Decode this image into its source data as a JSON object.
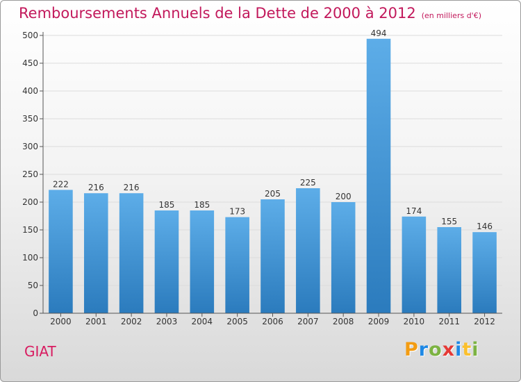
{
  "header": {
    "title": "Remboursements Annuels de la Dette de 2000 à 2012",
    "subtitle": "(en milliers d'€)"
  },
  "footer": {
    "location": "GIAT",
    "brand_letters": [
      "P",
      "r",
      "o",
      "x",
      "i",
      "t",
      "i"
    ],
    "brand_colors": [
      "#f39c12",
      "#1e88e5",
      "#7cb342",
      "#e53935",
      "#1e88e5",
      "#fbc02d",
      "#7cb342"
    ]
  },
  "chart_data": {
    "type": "bar",
    "title": "Remboursements Annuels de la Dette de 2000 à 2012",
    "subtitle": "(en milliers d'€)",
    "categories": [
      "2000",
      "2001",
      "2002",
      "2003",
      "2004",
      "2005",
      "2006",
      "2007",
      "2008",
      "2009",
      "2010",
      "2011",
      "2012"
    ],
    "values": [
      222,
      216,
      216,
      185,
      185,
      173,
      205,
      225,
      200,
      494,
      174,
      155,
      146
    ],
    "ylim": [
      0,
      500
    ],
    "yticks": [
      0,
      50,
      100,
      150,
      200,
      250,
      300,
      350,
      400,
      450,
      500
    ],
    "grid": true,
    "colors": {
      "bar_top": "#5dade8",
      "bar_bottom": "#2b7bbd",
      "grid": "#dcdcdc",
      "axis": "#555555"
    }
  }
}
